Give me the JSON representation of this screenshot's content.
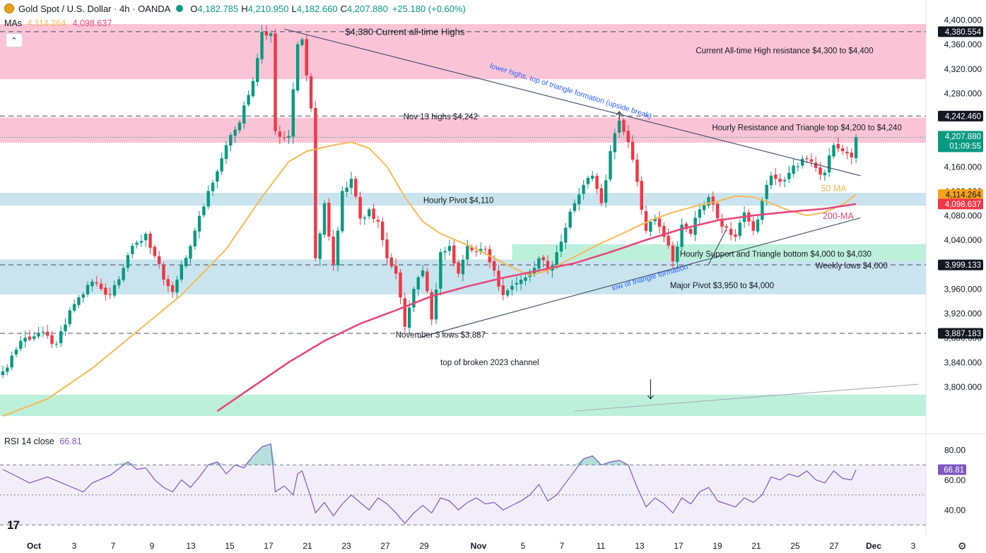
{
  "header": {
    "symbol": "Gold Spot / U.S. Dollar · 4h · OANDA",
    "o_label": "O",
    "o_value": "4,182.785",
    "h_label": "H",
    "h_value": "4,210.950",
    "l_label": "L",
    "l_value": "4,182.660",
    "c_label": "C",
    "c_value": "4,207.880",
    "change": "+25.180 (+0.60%)"
  },
  "mas_line": {
    "label": "MAs",
    "ma50": "4,114.264",
    "ma200": "4,098.637"
  },
  "rsi_header": {
    "label": "RSI 14 close",
    "value": "66.81"
  },
  "logo_text": "17",
  "colors": {
    "up": "#089981",
    "down": "#f23645",
    "ma50": "#f7b955",
    "ma200": "#e8487b",
    "rsi": "#7e57c2",
    "pink_zone": "#fbc4d6",
    "blue_zone": "#c9e4ee",
    "green_zone": "#bdf0da"
  },
  "chart_data": {
    "type": "candlestick",
    "price_axis": {
      "ylim": [
        3760,
        4400
      ],
      "ticks": [
        "4,400.000",
        "4,360.000",
        "4,320.000",
        "4,280.000",
        "4,240.000",
        "4,160.000",
        "4,120.000",
        "4,080.000",
        "4,040.000",
        "3,960.000",
        "3,920.000",
        "3,880.000",
        "3,840.000",
        "3,800.000"
      ],
      "tick_values": [
        4400,
        4360,
        4320,
        4280,
        4240,
        4160,
        4120,
        4080,
        4040,
        3960,
        3920,
        3880,
        3840,
        3800
      ]
    },
    "x_axis": {
      "labels": [
        "Oct",
        "3",
        "7",
        "9",
        "13",
        "15",
        "17",
        "21",
        "23",
        "27",
        "29",
        "Nov",
        "5",
        "7",
        "11",
        "13",
        "17",
        "19",
        "21",
        "25",
        "27",
        "Dec",
        "3"
      ],
      "bold": [
        "Oct",
        "Nov",
        "Dec"
      ]
    },
    "price_badges": [
      {
        "value": 4380.554,
        "text": "4,380.554",
        "style": "dark"
      },
      {
        "value": 4242.46,
        "text": "4,242.460",
        "style": "dark"
      },
      {
        "value": 4207.88,
        "text": "4,207.880",
        "sub": "01:09:55",
        "style": "green"
      },
      {
        "value": 4114.264,
        "text": "4,114.264",
        "style": "orange"
      },
      {
        "value": 4098.637,
        "text": "4,098.637",
        "style": "red"
      },
      {
        "value": 3999.133,
        "text": "3,999.133",
        "style": "dark"
      },
      {
        "value": 3887.183,
        "text": "3,887.183",
        "style": "dark"
      }
    ],
    "zones": [
      {
        "color": "pink",
        "from": 4303,
        "to": 4393
      },
      {
        "color": "pink",
        "from": 4199,
        "to": 4240
      },
      {
        "color": "blue",
        "from": 4096,
        "to": 4117
      },
      {
        "color": "blue",
        "from": 3951,
        "to": 4008
      },
      {
        "color": "green",
        "from": 4006,
        "to": 4033,
        "x_from_bar": 114
      },
      {
        "color": "green",
        "from": 3752,
        "to": 3787
      }
    ],
    "dashed_levels": [
      4380.554,
      4242.46,
      3999.133,
      3887.183
    ],
    "current_price_level": 4207.88,
    "annotations": [
      {
        "text": "$4,380 Current all-time Highs",
        "bar": 90,
        "price": 4380,
        "size": 13
      },
      {
        "text": "Current All-time High resistance $4,300 to $4,400",
        "bar": 175,
        "price": 4350,
        "size": 11.5
      },
      {
        "text": "Nov 13 highs $4,242",
        "bar": 98,
        "price": 4242,
        "size": 11.5
      },
      {
        "text": "Hourly Resistance and Triangle top $4,200 to $4,240",
        "bar": 180,
        "price": 4224,
        "size": 11.5
      },
      {
        "text": "Hourly Pivot $4,110",
        "bar": 102,
        "price": 4105,
        "size": 11.5
      },
      {
        "text": "Hourly Support and Triangle bottom $4,000 to $4,030",
        "bar": 173,
        "price": 4017,
        "size": 11.5
      },
      {
        "text": "Weekly lows $4,000",
        "bar": 190,
        "price": 3998,
        "size": 11.5
      },
      {
        "text": "Major Pivot $3,950 to $4,000",
        "bar": 161,
        "price": 3966,
        "size": 11.5
      },
      {
        "text": "November 3 lows $3,887",
        "bar": 98,
        "price": 3885,
        "size": 11.5
      },
      {
        "text": "top of broken 2023 channel",
        "bar": 109,
        "price": 3840,
        "size": 11.5
      },
      {
        "text": "50 MA",
        "bar": 186,
        "price": 4124,
        "size": 12.5,
        "color": "ma50"
      },
      {
        "text": "200-MA",
        "bar": 187,
        "price": 4079,
        "size": 12.5,
        "color": "ma200"
      }
    ],
    "rotated_annotations": [
      {
        "text": "lower highs, top of triangle formation (upside break)",
        "bar": 127,
        "price": 4280,
        "angle": 17.5,
        "size": 10.5
      },
      {
        "text": "low of triangle formation",
        "bar": 145,
        "price": 3975,
        "angle": -16,
        "size": 10.5
      }
    ],
    "trendlines": [
      {
        "name": "triangle-top",
        "from": [
          63,
          4385
        ],
        "to": [
          192,
          4145
        ],
        "color": "#3a4a66"
      },
      {
        "name": "triangle-bottom",
        "from": [
          93,
          3880
        ],
        "to": [
          192,
          4076
        ],
        "color": "#3a4a66"
      },
      {
        "name": "broken-channel",
        "from": [
          128,
          3760
        ],
        "to": [
          205,
          3804
        ],
        "color": "#a7adbb"
      },
      {
        "name": "wedge-leg",
        "from": [
          158,
          4000
        ],
        "to": [
          162,
          4058
        ],
        "color": "#3a4a66"
      }
    ],
    "arrows": [
      {
        "bar": 138,
        "from": 4235,
        "to": 4250,
        "dir": "up"
      },
      {
        "bar": 145,
        "from": 3812,
        "to": 3780,
        "dir": "down"
      }
    ],
    "candles": {
      "count": 192,
      "close_anchors": [
        [
          0,
          3825
        ],
        [
          4,
          3875
        ],
        [
          8,
          3888
        ],
        [
          12,
          3870
        ],
        [
          16,
          3935
        ],
        [
          20,
          3972
        ],
        [
          24,
          3950
        ],
        [
          28,
          4015
        ],
        [
          32,
          4050
        ],
        [
          36,
          3975
        ],
        [
          38,
          3955
        ],
        [
          42,
          4030
        ],
        [
          46,
          4120
        ],
        [
          50,
          4195
        ],
        [
          53,
          4232
        ],
        [
          56,
          4300
        ],
        [
          58,
          4380
        ],
        [
          60,
          4378
        ],
        [
          61,
          4218
        ],
        [
          64,
          4210
        ],
        [
          66,
          4360
        ],
        [
          67,
          4368
        ],
        [
          69,
          4255
        ],
        [
          70,
          4010
        ],
        [
          72,
          4100
        ],
        [
          74,
          4000
        ],
        [
          76,
          4120
        ],
        [
          78,
          4140
        ],
        [
          80,
          4075
        ],
        [
          82,
          4090
        ],
        [
          84,
          4070
        ],
        [
          86,
          4010
        ],
        [
          88,
          3985
        ],
        [
          90,
          3898
        ],
        [
          92,
          3960
        ],
        [
          94,
          3990
        ],
        [
          96,
          3910
        ],
        [
          98,
          4020
        ],
        [
          100,
          4030
        ],
        [
          102,
          3985
        ],
        [
          104,
          4030
        ],
        [
          106,
          4020
        ],
        [
          108,
          4025
        ],
        [
          110,
          3990
        ],
        [
          112,
          3950
        ],
        [
          114,
          3965
        ],
        [
          116,
          3975
        ],
        [
          118,
          3985
        ],
        [
          120,
          4010
        ],
        [
          122,
          3990
        ],
        [
          124,
          4020
        ],
        [
          126,
          4060
        ],
        [
          128,
          4100
        ],
        [
          130,
          4130
        ],
        [
          132,
          4145
        ],
        [
          134,
          4100
        ],
        [
          136,
          4185
        ],
        [
          138,
          4235
        ],
        [
          140,
          4200
        ],
        [
          142,
          4135
        ],
        [
          144,
          4055
        ],
        [
          146,
          4075
        ],
        [
          148,
          4045
        ],
        [
          150,
          4005
        ],
        [
          152,
          4065
        ],
        [
          154,
          4050
        ],
        [
          156,
          4090
        ],
        [
          158,
          4110
        ],
        [
          160,
          4075
        ],
        [
          162,
          4060
        ],
        [
          164,
          4045
        ],
        [
          166,
          4085
        ],
        [
          168,
          4055
        ],
        [
          170,
          4105
        ],
        [
          172,
          4145
        ],
        [
          174,
          4135
        ],
        [
          176,
          4150
        ],
        [
          178,
          4160
        ],
        [
          180,
          4172
        ],
        [
          182,
          4158
        ],
        [
          184,
          4150
        ],
        [
          186,
          4195
        ],
        [
          188,
          4185
        ],
        [
          190,
          4175
        ],
        [
          191,
          4207.88
        ]
      ],
      "count_note": "Estimated closes (USD) sampled through the 192 4-hour bars; intermediate bars interpolated."
    },
    "ma50": {
      "name": "50 MA",
      "points": [
        [
          0,
          3752
        ],
        [
          10,
          3780
        ],
        [
          20,
          3830
        ],
        [
          30,
          3890
        ],
        [
          40,
          3950
        ],
        [
          50,
          4025
        ],
        [
          58,
          4110
        ],
        [
          64,
          4168
        ],
        [
          68,
          4185
        ],
        [
          74,
          4195
        ],
        [
          78,
          4200
        ],
        [
          82,
          4190
        ],
        [
          86,
          4160
        ],
        [
          90,
          4110
        ],
        [
          94,
          4070
        ],
        [
          98,
          4050
        ],
        [
          102,
          4038
        ],
        [
          106,
          4025
        ],
        [
          110,
          4010
        ],
        [
          114,
          3995
        ],
        [
          118,
          3982
        ],
        [
          122,
          3990
        ],
        [
          126,
          4005
        ],
        [
          130,
          4020
        ],
        [
          134,
          4035
        ],
        [
          138,
          4048
        ],
        [
          142,
          4062
        ],
        [
          146,
          4075
        ],
        [
          150,
          4085
        ],
        [
          156,
          4097
        ],
        [
          160,
          4103
        ],
        [
          164,
          4112
        ],
        [
          168,
          4110
        ],
        [
          172,
          4100
        ],
        [
          176,
          4088
        ],
        [
          180,
          4080
        ],
        [
          184,
          4085
        ],
        [
          188,
          4098
        ],
        [
          191,
          4114.264
        ]
      ]
    },
    "ma200": {
      "name": "200-MA",
      "points": [
        [
          48,
          3760
        ],
        [
          56,
          3800
        ],
        [
          64,
          3840
        ],
        [
          72,
          3875
        ],
        [
          80,
          3903
        ],
        [
          88,
          3925
        ],
        [
          96,
          3948
        ],
        [
          104,
          3964
        ],
        [
          112,
          3978
        ],
        [
          120,
          3990
        ],
        [
          128,
          4002
        ],
        [
          136,
          4020
        ],
        [
          144,
          4040
        ],
        [
          152,
          4058
        ],
        [
          160,
          4072
        ],
        [
          168,
          4080
        ],
        [
          176,
          4086
        ],
        [
          184,
          4091
        ],
        [
          191,
          4098.637
        ]
      ]
    },
    "rsi": {
      "name": "RSI 14 close",
      "ylim": [
        28,
        88
      ],
      "ticks": [
        "80.00",
        "60.00",
        "40.00"
      ],
      "tick_values": [
        80,
        60,
        40
      ],
      "bands": [
        70,
        50,
        30
      ],
      "current": 66.81,
      "current_text": "66.81",
      "points": [
        [
          0,
          67
        ],
        [
          4,
          61
        ],
        [
          6,
          58
        ],
        [
          10,
          62
        ],
        [
          14,
          57
        ],
        [
          18,
          52
        ],
        [
          20,
          58
        ],
        [
          24,
          63
        ],
        [
          28,
          72
        ],
        [
          30,
          67
        ],
        [
          32,
          68
        ],
        [
          34,
          60
        ],
        [
          36,
          55
        ],
        [
          38,
          52
        ],
        [
          40,
          60
        ],
        [
          42,
          55
        ],
        [
          44,
          62
        ],
        [
          46,
          70
        ],
        [
          48,
          72
        ],
        [
          50,
          64
        ],
        [
          52,
          70
        ],
        [
          54,
          68
        ],
        [
          56,
          76
        ],
        [
          58,
          82
        ],
        [
          60,
          84
        ],
        [
          61,
          52
        ],
        [
          63,
          56
        ],
        [
          65,
          50
        ],
        [
          66,
          64
        ],
        [
          67,
          66
        ],
        [
          69,
          48
        ],
        [
          70,
          38
        ],
        [
          72,
          45
        ],
        [
          74,
          36
        ],
        [
          76,
          44
        ],
        [
          78,
          50
        ],
        [
          80,
          45
        ],
        [
          82,
          40
        ],
        [
          84,
          48
        ],
        [
          86,
          44
        ],
        [
          88,
          38
        ],
        [
          90,
          31
        ],
        [
          92,
          38
        ],
        [
          94,
          43
        ],
        [
          96,
          38
        ],
        [
          98,
          48
        ],
        [
          100,
          46
        ],
        [
          102,
          40
        ],
        [
          104,
          45
        ],
        [
          106,
          48
        ],
        [
          108,
          44
        ],
        [
          110,
          45
        ],
        [
          112,
          40
        ],
        [
          114,
          43
        ],
        [
          116,
          46
        ],
        [
          118,
          50
        ],
        [
          120,
          57
        ],
        [
          122,
          46
        ],
        [
          124,
          50
        ],
        [
          126,
          58
        ],
        [
          128,
          66
        ],
        [
          130,
          74
        ],
        [
          132,
          76
        ],
        [
          134,
          70
        ],
        [
          136,
          72
        ],
        [
          138,
          73
        ],
        [
          140,
          70
        ],
        [
          142,
          55
        ],
        [
          144,
          42
        ],
        [
          146,
          48
        ],
        [
          148,
          44
        ],
        [
          150,
          38
        ],
        [
          152,
          48
        ],
        [
          154,
          44
        ],
        [
          156,
          52
        ],
        [
          158,
          55
        ],
        [
          160,
          46
        ],
        [
          162,
          44
        ],
        [
          164,
          42
        ],
        [
          166,
          48
        ],
        [
          168,
          45
        ],
        [
          170,
          50
        ],
        [
          172,
          62
        ],
        [
          174,
          60
        ],
        [
          176,
          64
        ],
        [
          178,
          62
        ],
        [
          180,
          66
        ],
        [
          182,
          60
        ],
        [
          184,
          58
        ],
        [
          186,
          66
        ],
        [
          188,
          61
        ],
        [
          190,
          60
        ],
        [
          191,
          66.81
        ]
      ]
    }
  }
}
